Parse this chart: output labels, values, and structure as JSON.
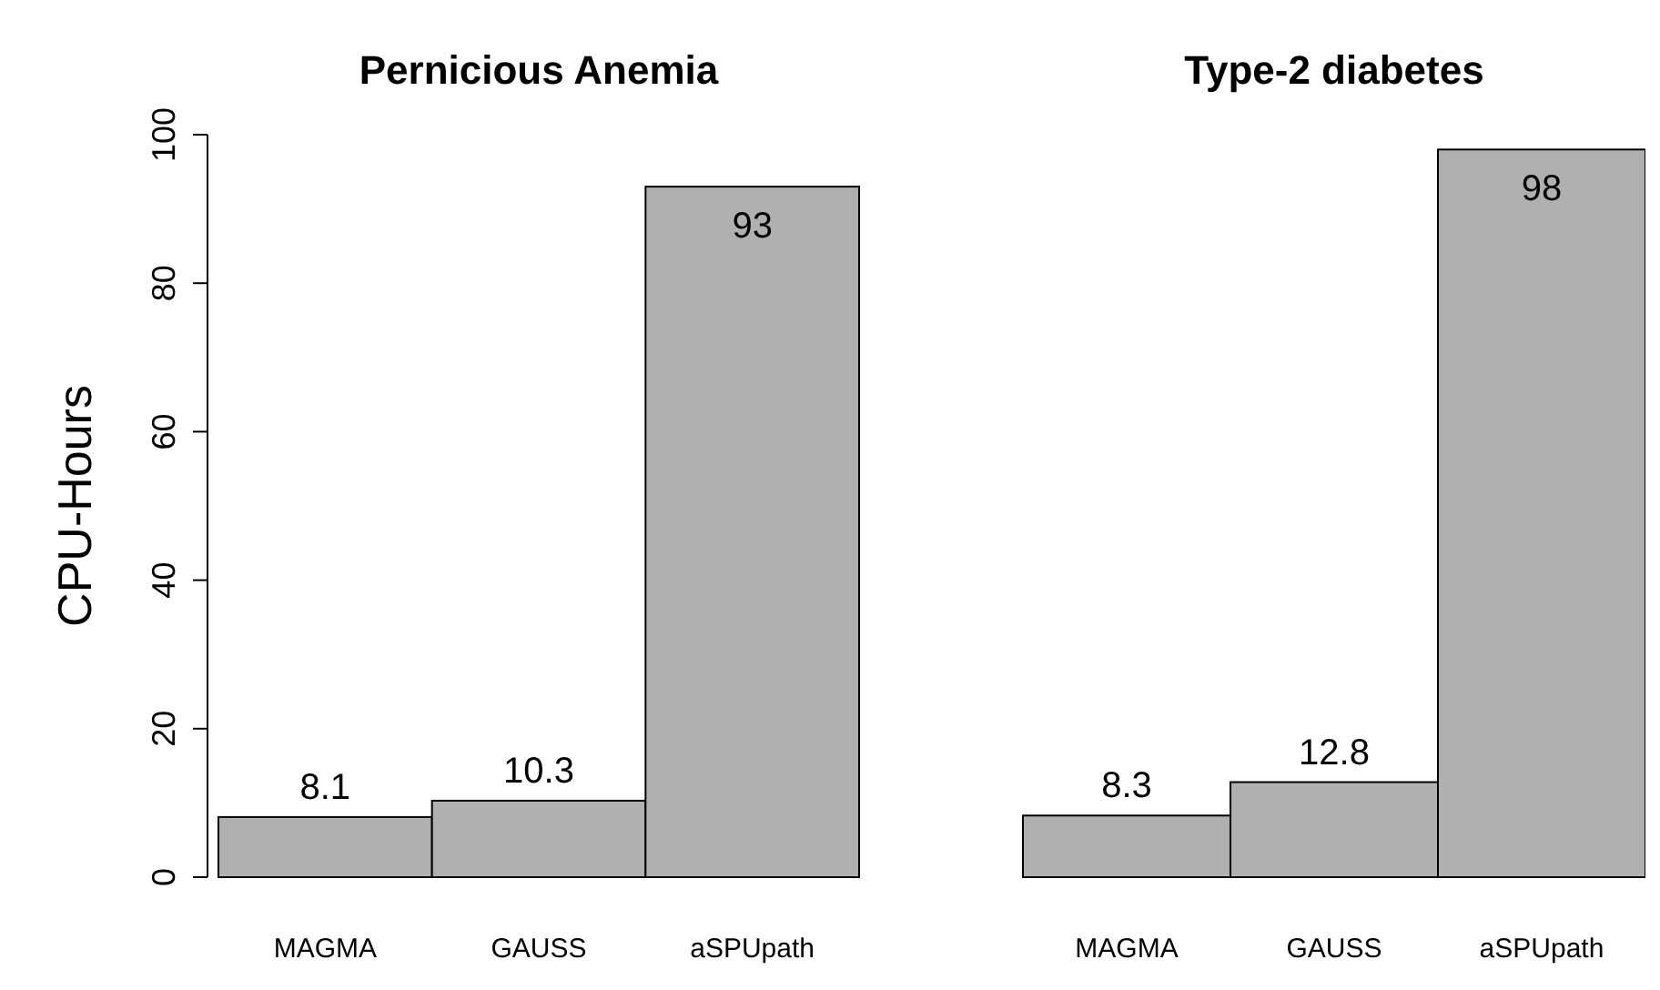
{
  "chart_data": [
    {
      "type": "bar",
      "title": "Pernicious Anemia",
      "ylabel": "CPU-Hours",
      "categories": [
        "MAGMA",
        "GAUSS",
        "aSPUpath"
      ],
      "values": [
        8.1,
        10.3,
        93
      ],
      "color": "#b0b0b0",
      "ylim": [
        0,
        100
      ],
      "yticks": [
        0,
        20,
        40,
        60,
        80,
        100
      ],
      "data_labels": true
    },
    {
      "type": "bar",
      "title": "Type-2 diabetes",
      "categories": [
        "MAGMA",
        "GAUSS",
        "aSPUpath"
      ],
      "values": [
        8.3,
        12.8,
        98
      ],
      "color": "#b0b0b0",
      "ylim": [
        0,
        100
      ],
      "yticks": [
        0,
        20,
        40,
        60,
        80,
        100
      ],
      "data_labels": true,
      "tick_labels": "x"
    }
  ]
}
